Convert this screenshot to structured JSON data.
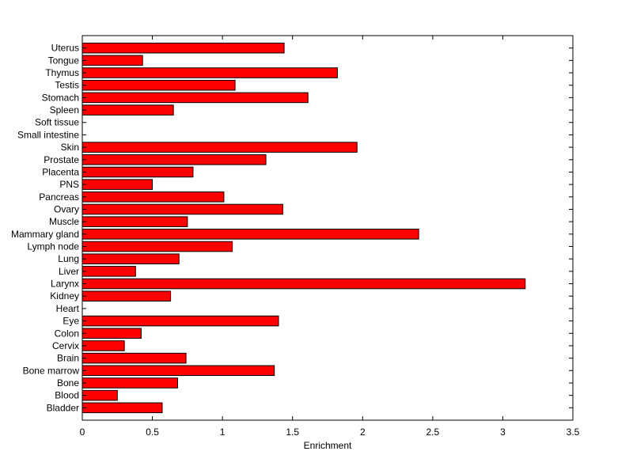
{
  "chart_data": {
    "type": "bar",
    "orientation": "horizontal",
    "title": "",
    "xlabel": "Enrichment",
    "ylabel": "",
    "xlim": [
      0,
      3.5
    ],
    "xticks": [
      0,
      0.5,
      1,
      1.5,
      2,
      2.5,
      3,
      3.5
    ],
    "xtick_labels": [
      "0",
      "0.5",
      "1",
      "1.5",
      "2",
      "2.5",
      "3",
      "3.5"
    ],
    "grid": false,
    "bar_color": "#ff0000",
    "edge_color": "#000000",
    "categories": [
      "Uterus",
      "Tongue",
      "Thymus",
      "Testis",
      "Stomach",
      "Spleen",
      "Soft tissue",
      "Small intestine",
      "Skin",
      "Prostate",
      "Placenta",
      "PNS",
      "Pancreas",
      "Ovary",
      "Muscle",
      "Mammary gland",
      "Lymph node",
      "Lung",
      "Liver",
      "Larynx",
      "Kidney",
      "Heart",
      "Eye",
      "Colon",
      "Cervix",
      "Brain",
      "Bone marrow",
      "Bone",
      "Blood",
      "Bladder"
    ],
    "values": [
      1.44,
      0.43,
      1.82,
      1.09,
      1.61,
      0.65,
      0,
      0,
      1.96,
      1.31,
      0.79,
      0.5,
      1.01,
      1.43,
      0.75,
      2.4,
      1.07,
      0.69,
      0.38,
      3.16,
      0.63,
      0,
      1.4,
      0.42,
      0.3,
      0.74,
      1.37,
      0.68,
      0.25,
      0.57
    ]
  }
}
